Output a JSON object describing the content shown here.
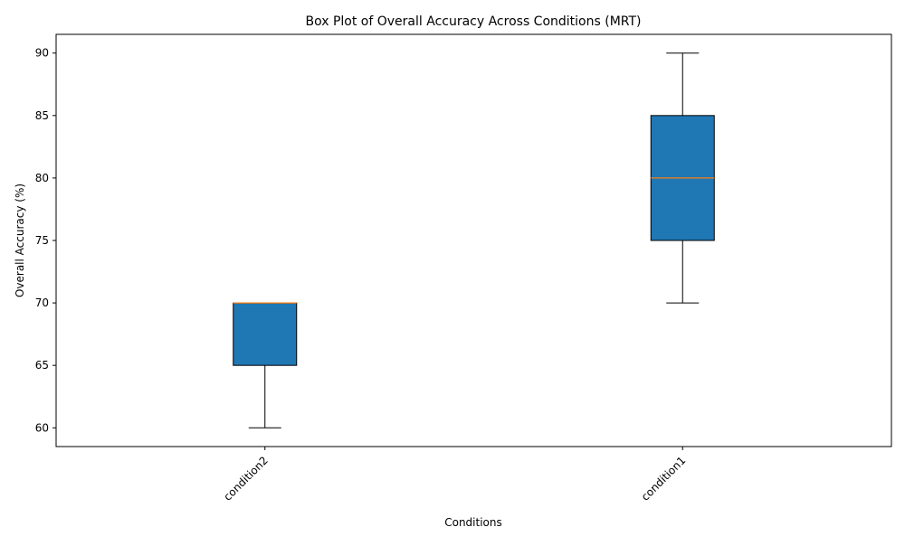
{
  "chart_data": {
    "type": "box",
    "title": "Box Plot of Overall Accuracy Across Conditions (MRT)",
    "xlabel": "Conditions",
    "ylabel": "Overall Accuracy (%)",
    "ylim": [
      58.5,
      91.5
    ],
    "yticks": [
      60,
      65,
      70,
      75,
      80,
      85,
      90
    ],
    "grid": false,
    "categories": [
      "condition2",
      "condition1"
    ],
    "boxes": [
      {
        "label": "condition2",
        "whisker_low": 60,
        "q1": 65,
        "median": 70,
        "q3": 70,
        "whisker_high": 70
      },
      {
        "label": "condition1",
        "whisker_low": 70,
        "q1": 75,
        "median": 80,
        "q3": 85,
        "whisker_high": 90
      }
    ],
    "colors": {
      "box_fill": "#1f77b4",
      "median": "#ff7f0e",
      "edge": "#000000"
    }
  }
}
